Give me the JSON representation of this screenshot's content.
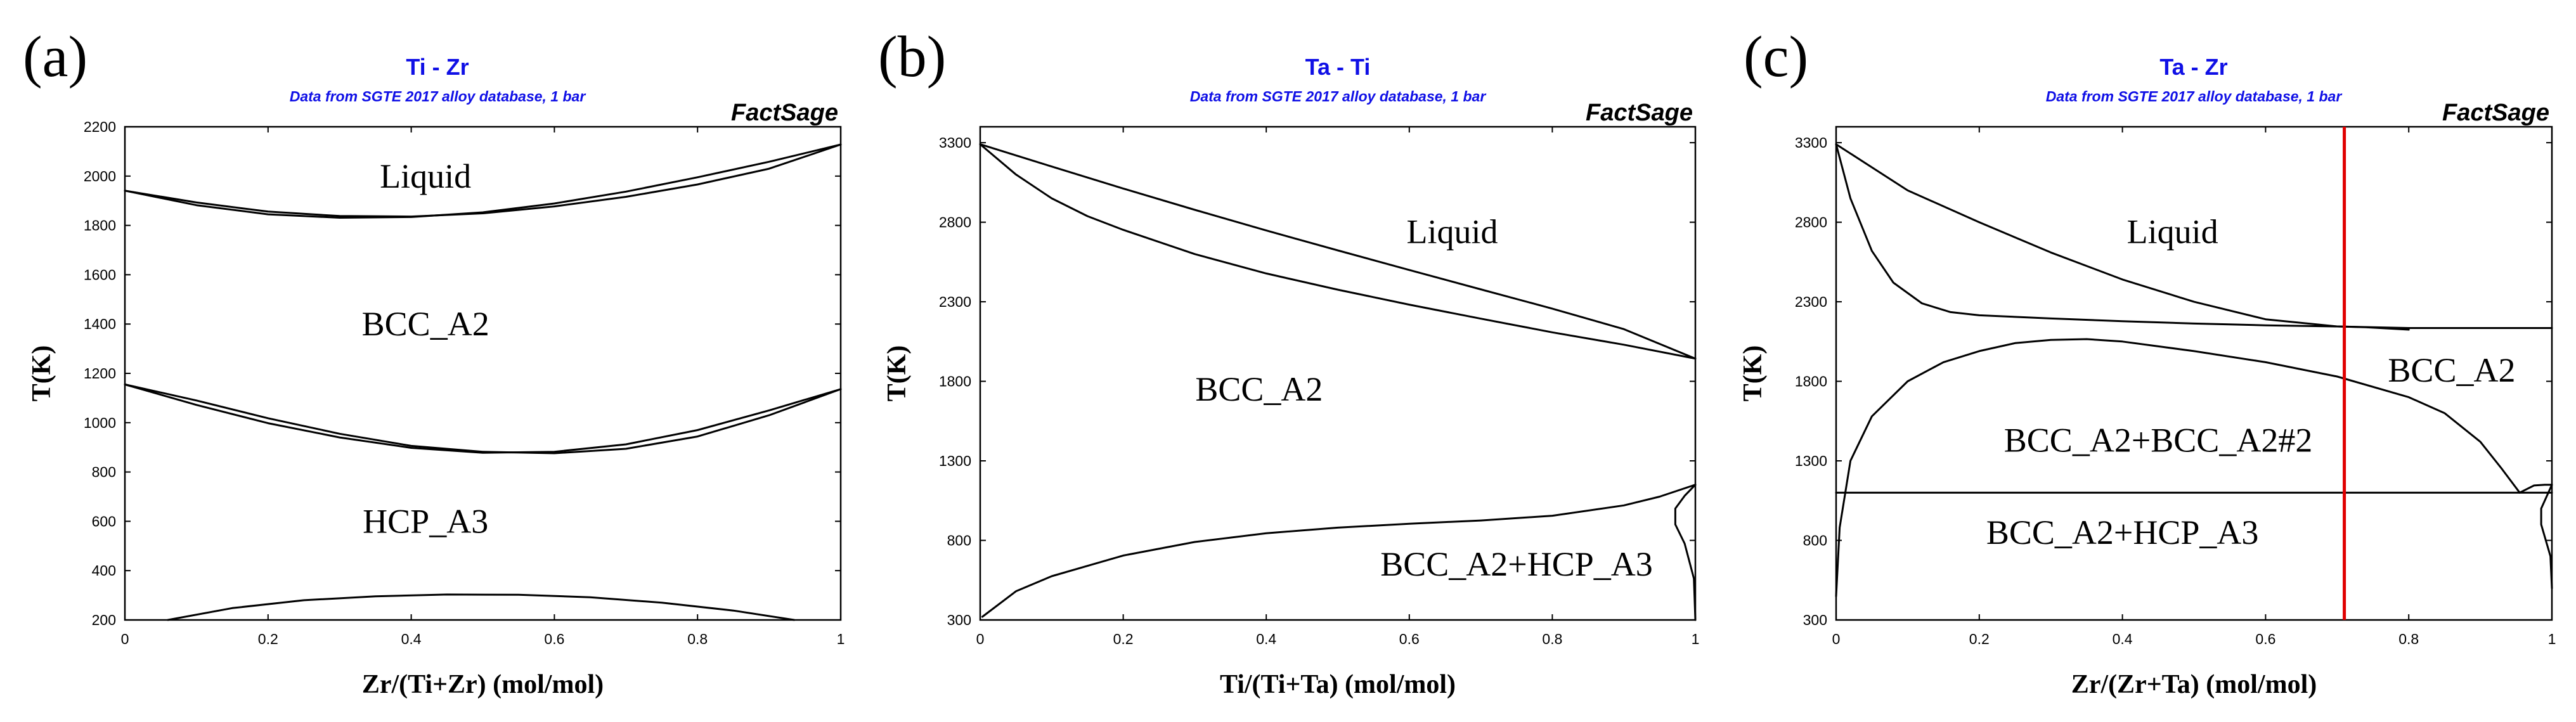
{
  "chart_data": [
    {
      "type": "line",
      "panel": "(a)",
      "title": "Ti - Zr",
      "subtitle": "Data from SGTE 2017 alloy database, 1 bar",
      "brand": "FactSage",
      "xlabel": "Zr/(Ti+Zr) (mol/mol)",
      "ylabel": "T(K)",
      "xlim": [
        0,
        1
      ],
      "ylim": [
        200,
        2200
      ],
      "xticks": [
        "0",
        "0.2",
        "0.4",
        "0.6",
        "0.8",
        "1"
      ],
      "xtick_values": [
        0,
        0.2,
        0.4,
        0.6,
        0.8,
        1
      ],
      "yticks": [
        "200",
        "400",
        "600",
        "800",
        "1000",
        "1200",
        "1400",
        "1600",
        "1800",
        "2000",
        "2200"
      ],
      "ytick_values": [
        200,
        400,
        600,
        800,
        1000,
        1200,
        1400,
        1600,
        1800,
        2000,
        2200
      ],
      "region_labels": [
        {
          "text": "Liquid",
          "x": 0.42,
          "y": 2000
        },
        {
          "text": "BCC_A2",
          "x": 0.42,
          "y": 1400
        },
        {
          "text": "HCP_A3",
          "x": 0.42,
          "y": 600
        }
      ],
      "vline": null,
      "series": [
        {
          "x": [
            0,
            0.1,
            0.2,
            0.3,
            0.4,
            0.5,
            0.6,
            0.7,
            0.8,
            0.9,
            1
          ],
          "y": [
            1941,
            1893,
            1856,
            1838,
            1836,
            1849,
            1877,
            1916,
            1966,
            2030,
            2128
          ]
        },
        {
          "x": [
            0,
            0.1,
            0.2,
            0.3,
            0.4,
            0.5,
            0.6,
            0.7,
            0.8,
            0.9,
            1
          ],
          "y": [
            1941,
            1882,
            1845,
            1831,
            1834,
            1853,
            1889,
            1937,
            1995,
            2058,
            2128
          ]
        },
        {
          "x": [
            0,
            0.1,
            0.2,
            0.3,
            0.4,
            0.5,
            0.6,
            0.7,
            0.8,
            0.9,
            1
          ],
          "y": [
            1155,
            1072,
            998,
            940,
            898,
            878,
            882,
            912,
            970,
            1050,
            1136
          ]
        },
        {
          "x": [
            0,
            0.1,
            0.2,
            0.3,
            0.4,
            0.5,
            0.6,
            0.7,
            0.8,
            0.9,
            1
          ],
          "y": [
            1155,
            1090,
            1018,
            955,
            906,
            882,
            876,
            894,
            944,
            1030,
            1136
          ]
        },
        {
          "x": [
            0.06,
            0.15,
            0.25,
            0.35,
            0.45,
            0.55,
            0.65,
            0.75,
            0.85,
            0.935
          ],
          "y": [
            200,
            248,
            280,
            296,
            303,
            302,
            292,
            270,
            238,
            200
          ]
        }
      ]
    },
    {
      "type": "line",
      "panel": "(b)",
      "title": "Ta - Ti",
      "subtitle": "Data from SGTE 2017 alloy database, 1 bar",
      "brand": "FactSage",
      "xlabel": "Ti/(Ti+Ta) (mol/mol)",
      "ylabel": "T(K)",
      "xlim": [
        0,
        1
      ],
      "ylim": [
        300,
        3400
      ],
      "xticks": [
        "0",
        "0.2",
        "0.4",
        "0.6",
        "0.8",
        "1"
      ],
      "xtick_values": [
        0,
        0.2,
        0.4,
        0.6,
        0.8,
        1
      ],
      "yticks": [
        "300",
        "800",
        "1300",
        "1800",
        "2300",
        "2800",
        "3300"
      ],
      "ytick_values": [
        300,
        800,
        1300,
        1800,
        2300,
        2800,
        3300
      ],
      "region_labels": [
        {
          "text": "Liquid",
          "x": 0.66,
          "y": 2740
        },
        {
          "text": "BCC_A2",
          "x": 0.39,
          "y": 1750
        },
        {
          "text": "BCC_A2+HCP_A3",
          "x": 0.75,
          "y": 650
        }
      ],
      "vline": null,
      "series": [
        {
          "x": [
            0,
            0.1,
            0.2,
            0.3,
            0.4,
            0.5,
            0.6,
            0.7,
            0.8,
            0.9,
            1
          ],
          "y": [
            3290,
            3150,
            3012,
            2878,
            2748,
            2623,
            2500,
            2378,
            2257,
            2128,
            1943
          ]
        },
        {
          "x": [
            0,
            0.05,
            0.1,
            0.15,
            0.2,
            0.3,
            0.4,
            0.5,
            0.6,
            0.7,
            0.8,
            0.9,
            1
          ],
          "y": [
            3290,
            3100,
            2950,
            2838,
            2752,
            2600,
            2478,
            2376,
            2282,
            2194,
            2108,
            2030,
            1943
          ]
        },
        {
          "x": [
            0.003,
            0.05,
            0.1,
            0.2,
            0.3,
            0.4,
            0.5,
            0.6,
            0.7,
            0.8,
            0.9,
            0.95,
            1
          ],
          "y": [
            320,
            480,
            575,
            705,
            790,
            845,
            880,
            905,
            925,
            955,
            1020,
            1075,
            1150
          ]
        },
        {
          "x": [
            1,
            0.985,
            0.972,
            0.972,
            0.985,
            0.998,
            1
          ],
          "y": [
            1150,
            1080,
            1000,
            900,
            780,
            560,
            300
          ]
        }
      ]
    },
    {
      "type": "line",
      "panel": "(c)",
      "title": "Ta - Zr",
      "subtitle": "Data from SGTE 2017 alloy database, 1 bar",
      "brand": "FactSage",
      "xlabel": "Zr/(Zr+Ta) (mol/mol)",
      "ylabel": "T(K)",
      "xlim": [
        0,
        1
      ],
      "ylim": [
        300,
        3400
      ],
      "xticks": [
        "0",
        "0.2",
        "0.4",
        "0.6",
        "0.8",
        "1"
      ],
      "xtick_values": [
        0,
        0.2,
        0.4,
        0.6,
        0.8,
        1
      ],
      "yticks": [
        "300",
        "800",
        "1300",
        "1800",
        "2300",
        "2800",
        "3300"
      ],
      "ytick_values": [
        300,
        800,
        1300,
        1800,
        2300,
        2800,
        3300
      ],
      "region_labels": [
        {
          "text": "Liquid",
          "x": 0.47,
          "y": 2740
        },
        {
          "text": "BCC_A2",
          "x": 0.86,
          "y": 1870
        },
        {
          "text": "BCC_A2+BCC_A2#2",
          "x": 0.45,
          "y": 1430
        },
        {
          "text": "BCC_A2+HCP_A3",
          "x": 0.4,
          "y": 850
        }
      ],
      "vline": {
        "x": 0.71,
        "color": "#e00000"
      },
      "series": [
        {
          "x": [
            0,
            0.1,
            0.2,
            0.3,
            0.4,
            0.5,
            0.6,
            0.7,
            0.74,
            0.8
          ],
          "y": [
            3290,
            3000,
            2800,
            2610,
            2440,
            2300,
            2190,
            2145,
            2140,
            2125
          ]
        },
        {
          "x": [
            0,
            0.02,
            0.05,
            0.08,
            0.12,
            0.16,
            0.2,
            0.3,
            0.4,
            0.5,
            0.6,
            0.7,
            0.8,
            1
          ],
          "y": [
            3290,
            2950,
            2620,
            2420,
            2290,
            2235,
            2215,
            2195,
            2178,
            2163,
            2152,
            2145,
            2135,
            2135
          ]
        },
        {
          "x": [
            0,
            0.005,
            0.02,
            0.05,
            0.1,
            0.15,
            0.2,
            0.25,
            0.3,
            0.35,
            0.4,
            0.5,
            0.6,
            0.7,
            0.8,
            0.85,
            0.9,
            0.93,
            0.955
          ],
          "y": [
            450,
            880,
            1300,
            1580,
            1800,
            1920,
            1990,
            2040,
            2060,
            2065,
            2050,
            1990,
            1920,
            1830,
            1700,
            1600,
            1420,
            1250,
            1100
          ]
        },
        {
          "x": [
            0,
            1
          ],
          "y": [
            1100,
            1100
          ]
        },
        {
          "x": [
            0.955,
            0.975,
            0.99,
            1
          ],
          "y": [
            1100,
            1145,
            1150,
            1150
          ]
        },
        {
          "x": [
            1,
            0.985,
            0.985,
            0.998,
            1
          ],
          "y": [
            1150,
            1000,
            900,
            700,
            500
          ]
        }
      ]
    }
  ]
}
